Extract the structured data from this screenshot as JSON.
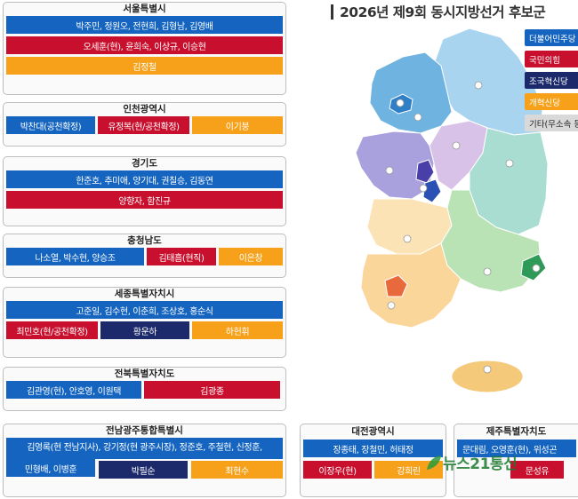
{
  "title": "2026년 제9회 동시지방선거 후보군",
  "colors": {
    "democratic": "#1565c0",
    "ppp": "#c8102e",
    "rebuilding": "#1c2a6b",
    "reform": "#f7a11a",
    "other": "#d9d9d9"
  },
  "legend": [
    {
      "label": "더불어민주당",
      "color": "#1565c0"
    },
    {
      "label": "국민의힘",
      "color": "#c8102e"
    },
    {
      "label": "조국혁신당",
      "color": "#1c2a6b"
    },
    {
      "label": "개혁신당",
      "color": "#f7a11a"
    },
    {
      "label": "기타(무소속 등)",
      "color": "#d9d9d9"
    }
  ],
  "regions": {
    "seoul": {
      "name": "서울특별시",
      "democratic": "박주민, 정원오, 전현희, 김형남, 김영배",
      "ppp": "오세훈(현), 윤희숙, 이상규, 이승현",
      "reform": "김정철"
    },
    "incheon": {
      "name": "인천광역시",
      "democratic": "박찬대(공천확정)",
      "ppp": "유정복(현/공천확정)",
      "reform": "이기붕"
    },
    "gyeonggi": {
      "name": "경기도",
      "democratic": "한준호, 추미애, 양기대, 권칠승, 김동연",
      "ppp": "양향자, 함진규"
    },
    "chungnam": {
      "name": "충청남도",
      "democratic": "나소열, 박수현, 양승조",
      "ppp": "김태흠(현직)",
      "reform": "이은창"
    },
    "sejong": {
      "name": "세종특별자치시",
      "democratic": "고준일, 김수현, 이춘희, 조상호, 홍순식",
      "ppp": "최민호(현/공천확정)",
      "rebuilding": "황운하",
      "reform": "하헌휘"
    },
    "jeonbuk": {
      "name": "전북특별자치도",
      "democratic": "김관영(현), 안호영, 이원택",
      "ppp": "김광종"
    },
    "jeonnam": {
      "name": "전남광주통합특별시",
      "democratic_line1": "김영록(현 전남지사), 강기정(현 광주시장), 정준호, 주철현, 신정훈,",
      "democratic_line2": "민형배, 이병훈",
      "rebuilding": "박필순",
      "reform": "최현수"
    },
    "daejeon": {
      "name": "대전광역시",
      "democratic": "장종태, 장철민, 허태정",
      "ppp": "이장우(현)",
      "reform": "강희린"
    },
    "jeju": {
      "name": "제주특별자치도",
      "democratic": "문대림, 오영훈(현), 위성곤",
      "ppp": "문성유"
    }
  },
  "watermark": "뉴스21통신"
}
